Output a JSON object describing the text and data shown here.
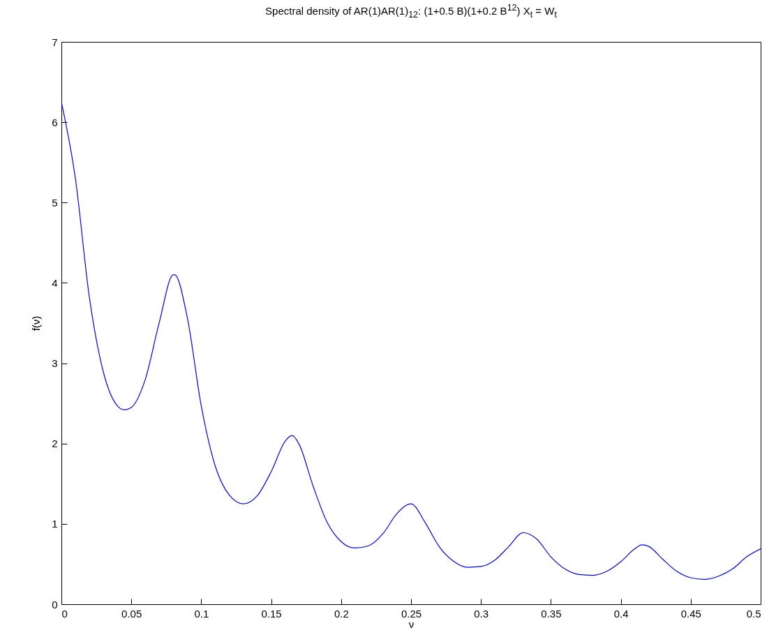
{
  "chart_data": {
    "type": "line",
    "title": "Spectral density of AR(1)AR(1)$_{12}$: (1+0.5 B)(1+0.2 B$^{12}$) X$_{t}$ = W$_{t}$",
    "xlabel": "ν",
    "ylabel": "f(ν)",
    "x": [
      0,
      0.01,
      0.02,
      0.03,
      0.04,
      0.045,
      0.05,
      0.06,
      0.07,
      0.08,
      0.081,
      0.09,
      0.1,
      0.11,
      0.12,
      0.13,
      0.14,
      0.15,
      0.16,
      0.165,
      0.17,
      0.18,
      0.19,
      0.2,
      0.21,
      0.22,
      0.23,
      0.24,
      0.25,
      0.26,
      0.27,
      0.28,
      0.29,
      0.3,
      0.31,
      0.32,
      0.33,
      0.34,
      0.35,
      0.36,
      0.37,
      0.38,
      0.39,
      0.4,
      0.41,
      0.415,
      0.42,
      0.43,
      0.44,
      0.45,
      0.46,
      0.47,
      0.48,
      0.49,
      0.5
    ],
    "series": [
      {
        "color": "#0000ff",
        "values": [
          6.25,
          5.3,
          3.82,
          2.89,
          2.47,
          2.42,
          2.45,
          2.8,
          3.51,
          4.1,
          4.1,
          3.57,
          2.47,
          1.72,
          1.36,
          1.25,
          1.35,
          1.65,
          2.03,
          2.1,
          1.99,
          1.47,
          1.02,
          0.78,
          0.7,
          0.73,
          0.88,
          1.13,
          1.25,
          1.02,
          0.72,
          0.54,
          0.46,
          0.47,
          0.55,
          0.72,
          0.89,
          0.81,
          0.59,
          0.44,
          0.37,
          0.36,
          0.41,
          0.53,
          0.69,
          0.74,
          0.72,
          0.56,
          0.41,
          0.33,
          0.31,
          0.35,
          0.44,
          0.59,
          0.69
        ]
      }
    ],
    "xlim": [
      0,
      0.5
    ],
    "ylim": [
      0,
      7
    ],
    "xticks": [
      0,
      0.05,
      0.1,
      0.15,
      0.2,
      0.25,
      0.3,
      0.35,
      0.4,
      0.45,
      0.5
    ],
    "yticks": [
      0,
      1,
      2,
      3,
      4,
      5,
      6,
      7
    ]
  }
}
